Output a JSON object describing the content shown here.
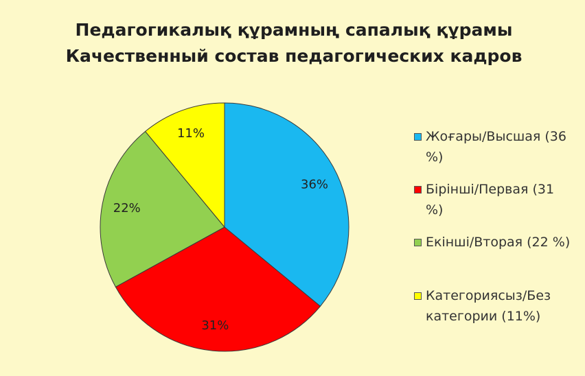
{
  "chart_data": {
    "type": "pie",
    "title": "Педагогикалық құрамның сапалық құрамы",
    "subtitle": "Качественный состав педагогических кадров",
    "categories": [
      "Жоғары/Высшая (36 %)",
      "Бірінші/Первая (31 %)",
      "Екінші/Вторая (22 %)",
      "Категориясыз/Без категории (11%)"
    ],
    "values": [
      36,
      31,
      22,
      11
    ],
    "value_labels": [
      "36%",
      "31%",
      "22%",
      "11%"
    ],
    "colors": [
      "#1ab8f0",
      "#ff0000",
      "#92d050",
      "#ffff00"
    ],
    "legend": "right"
  }
}
